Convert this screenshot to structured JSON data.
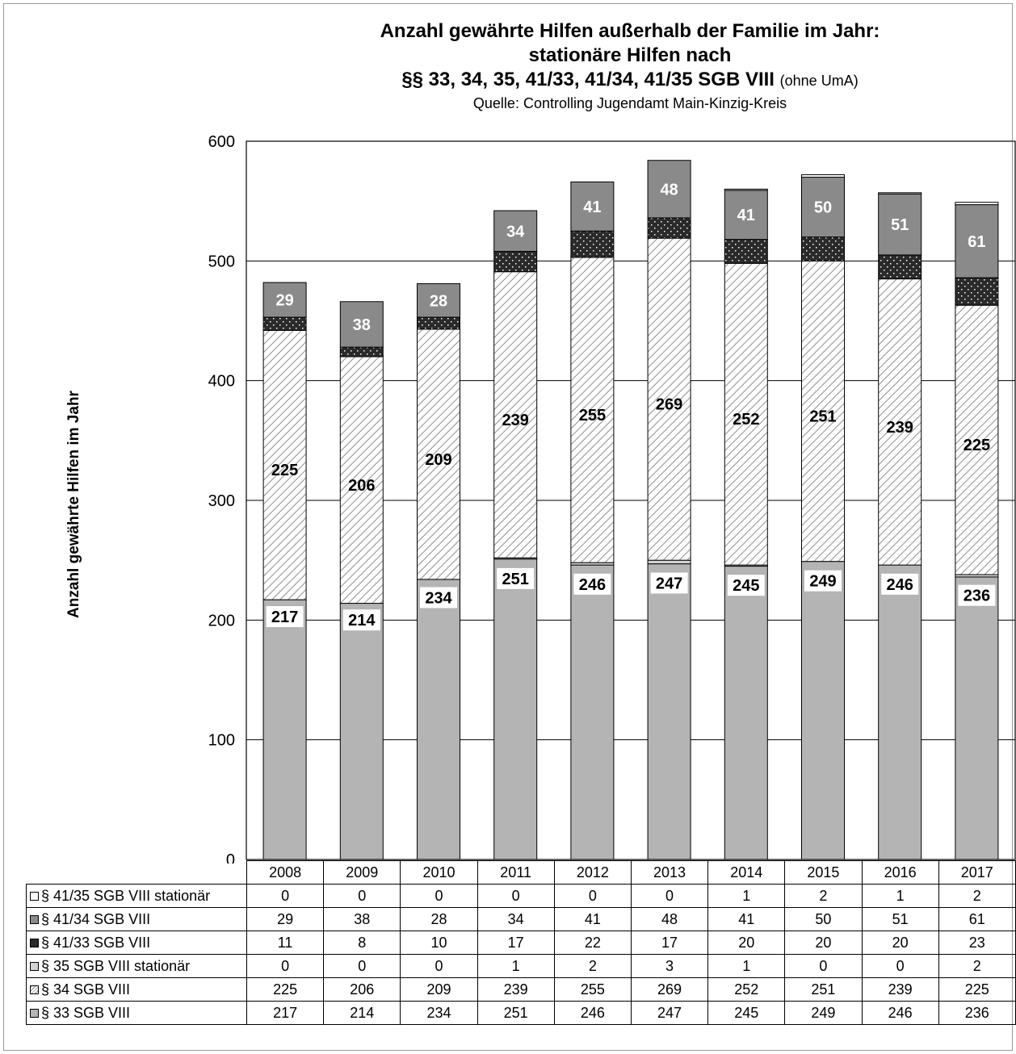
{
  "chart_data": {
    "type": "bar",
    "stacked": true,
    "title_lines": [
      "Anzahl gewährte Hilfen außerhalb der Familie im Jahr:",
      "stationäre Hilfen nach"
    ],
    "title_line3": "§§ 33, 34, 35, 41/33, 41/34, 41/35 SGB VIII",
    "title_suffix": "(ohne UmA)",
    "subtitle": "Quelle: Controlling Jugendamt Main-Kinzig-Kreis",
    "ylabel": "Anzahl gewährte Hilfen im Jahr",
    "xlabel": "",
    "ylim": [
      0,
      600
    ],
    "yticks": [
      0,
      100,
      200,
      300,
      400,
      500,
      600
    ],
    "grid": true,
    "legend": "data-table-below",
    "categories": [
      "2008",
      "2009",
      "2010",
      "2011",
      "2012",
      "2013",
      "2014",
      "2015",
      "2016",
      "2017"
    ],
    "series": [
      {
        "name": "§ 33 SGB VIII",
        "color": "#b4b4b4",
        "pattern": "solid",
        "values": [
          217,
          214,
          234,
          251,
          246,
          247,
          245,
          249,
          246,
          236
        ]
      },
      {
        "name": "§ 35 SGB VIII stationär",
        "color": "#d2d2d2",
        "pattern": "solid",
        "values": [
          0,
          0,
          0,
          1,
          2,
          3,
          1,
          0,
          0,
          2
        ]
      },
      {
        "name": "§ 34 SGB VIII",
        "color": "#ffffff",
        "pattern": "hatch",
        "values": [
          225,
          206,
          209,
          239,
          255,
          269,
          252,
          251,
          239,
          225
        ]
      },
      {
        "name": "§ 41/33 SGB VIII",
        "color": "#2a2a2a",
        "pattern": "dots",
        "values": [
          11,
          8,
          10,
          17,
          22,
          17,
          20,
          20,
          20,
          23
        ]
      },
      {
        "name": "§ 41/34 SGB VIII",
        "color": "#8a8a8a",
        "pattern": "solid",
        "values": [
          29,
          38,
          28,
          34,
          41,
          48,
          41,
          50,
          51,
          61
        ]
      },
      {
        "name": "§ 41/35 SGB VIII stationär",
        "color": "#ffffff",
        "pattern": "solid",
        "values": [
          0,
          0,
          0,
          0,
          0,
          0,
          1,
          2,
          1,
          2
        ]
      }
    ],
    "table_row_order": [
      "§ 41/35 SGB VIII stationär",
      "§ 41/34 SGB VIII",
      "§ 41/33 SGB VIII",
      "§ 35 SGB VIII stationär",
      "§ 34 SGB VIII",
      "§ 33 SGB VIII"
    ],
    "labeled_series": [
      "§ 33 SGB VIII",
      "§ 34 SGB VIII",
      "§ 41/34 SGB VIII"
    ]
  }
}
